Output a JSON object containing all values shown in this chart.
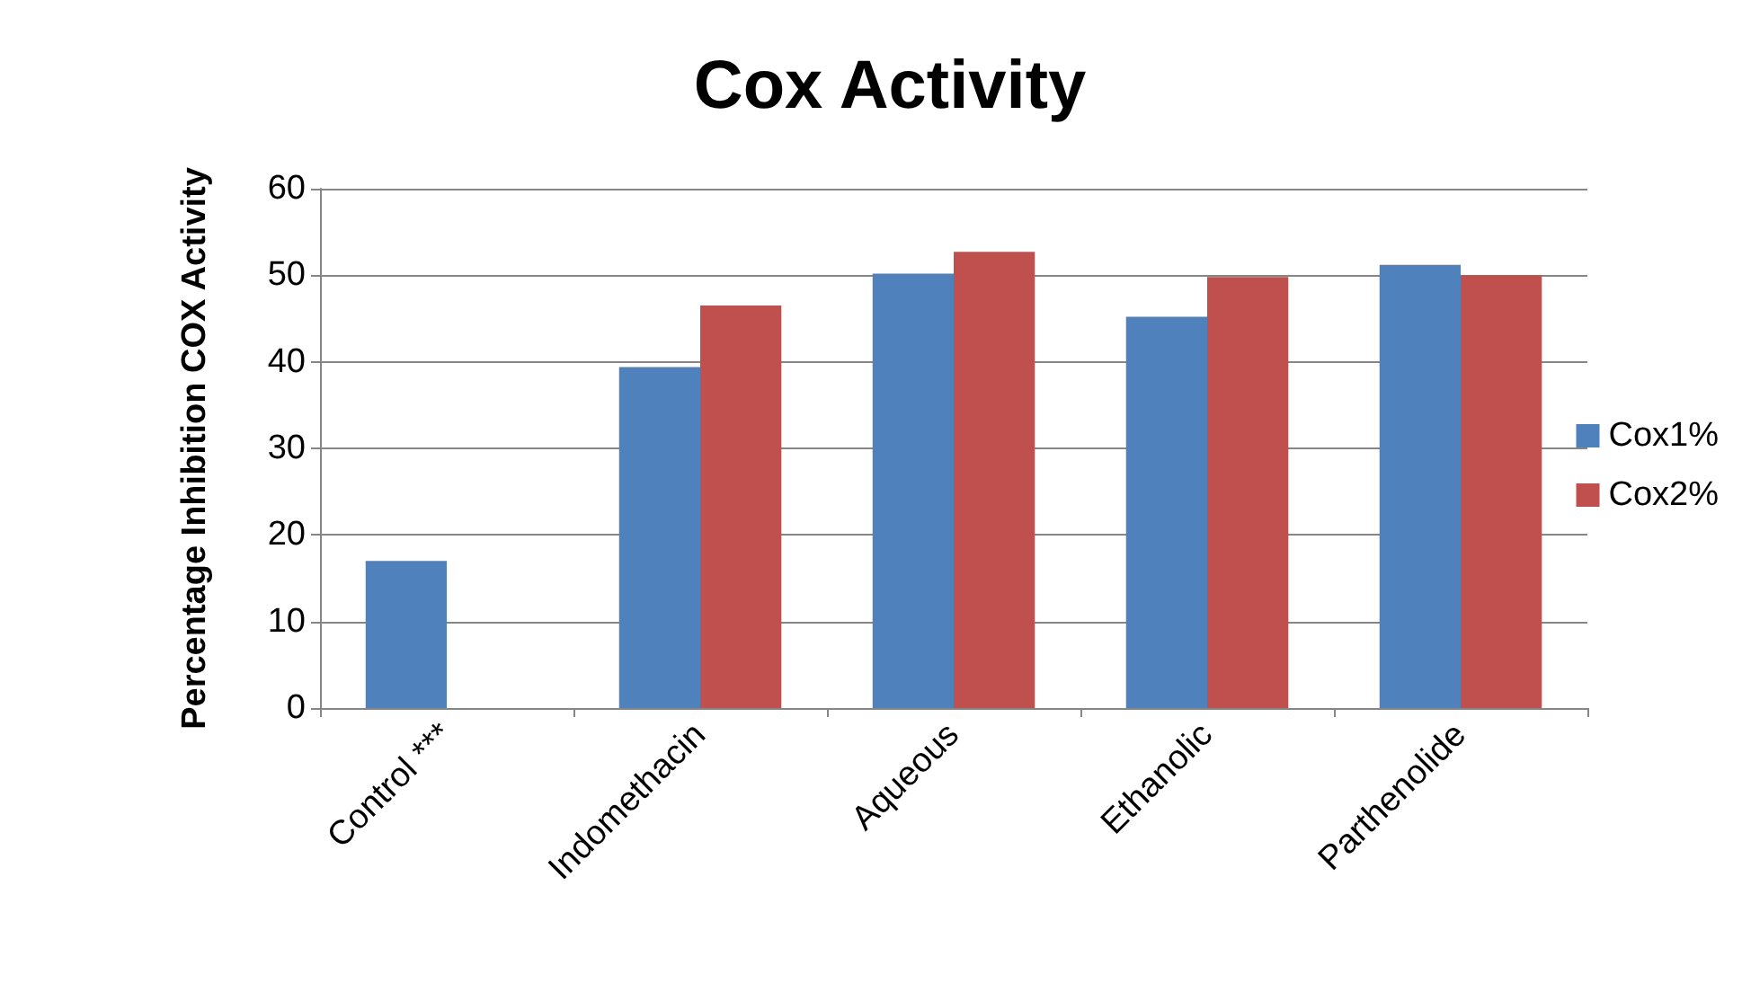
{
  "chart_data": {
    "type": "bar",
    "title": "Cox Activity",
    "ylabel": "Percentage Inhibition COX Activity",
    "categories": [
      "Control ***",
      "Indomethacin",
      "Aqueous",
      "Ethanolic",
      "Parthenolide"
    ],
    "series": [
      {
        "name": "Cox1%",
        "color": "#4f81bd",
        "values": [
          17,
          39.4,
          50.2,
          45.2,
          51.2
        ]
      },
      {
        "name": "Cox2%",
        "color": "#c0504d",
        "values": [
          null,
          46.5,
          52.7,
          49.8,
          50.0
        ]
      }
    ],
    "ylim": [
      0,
      60
    ],
    "yticks": [
      0,
      10,
      20,
      30,
      40,
      50,
      60
    ],
    "grid": "y",
    "legend": "right"
  }
}
